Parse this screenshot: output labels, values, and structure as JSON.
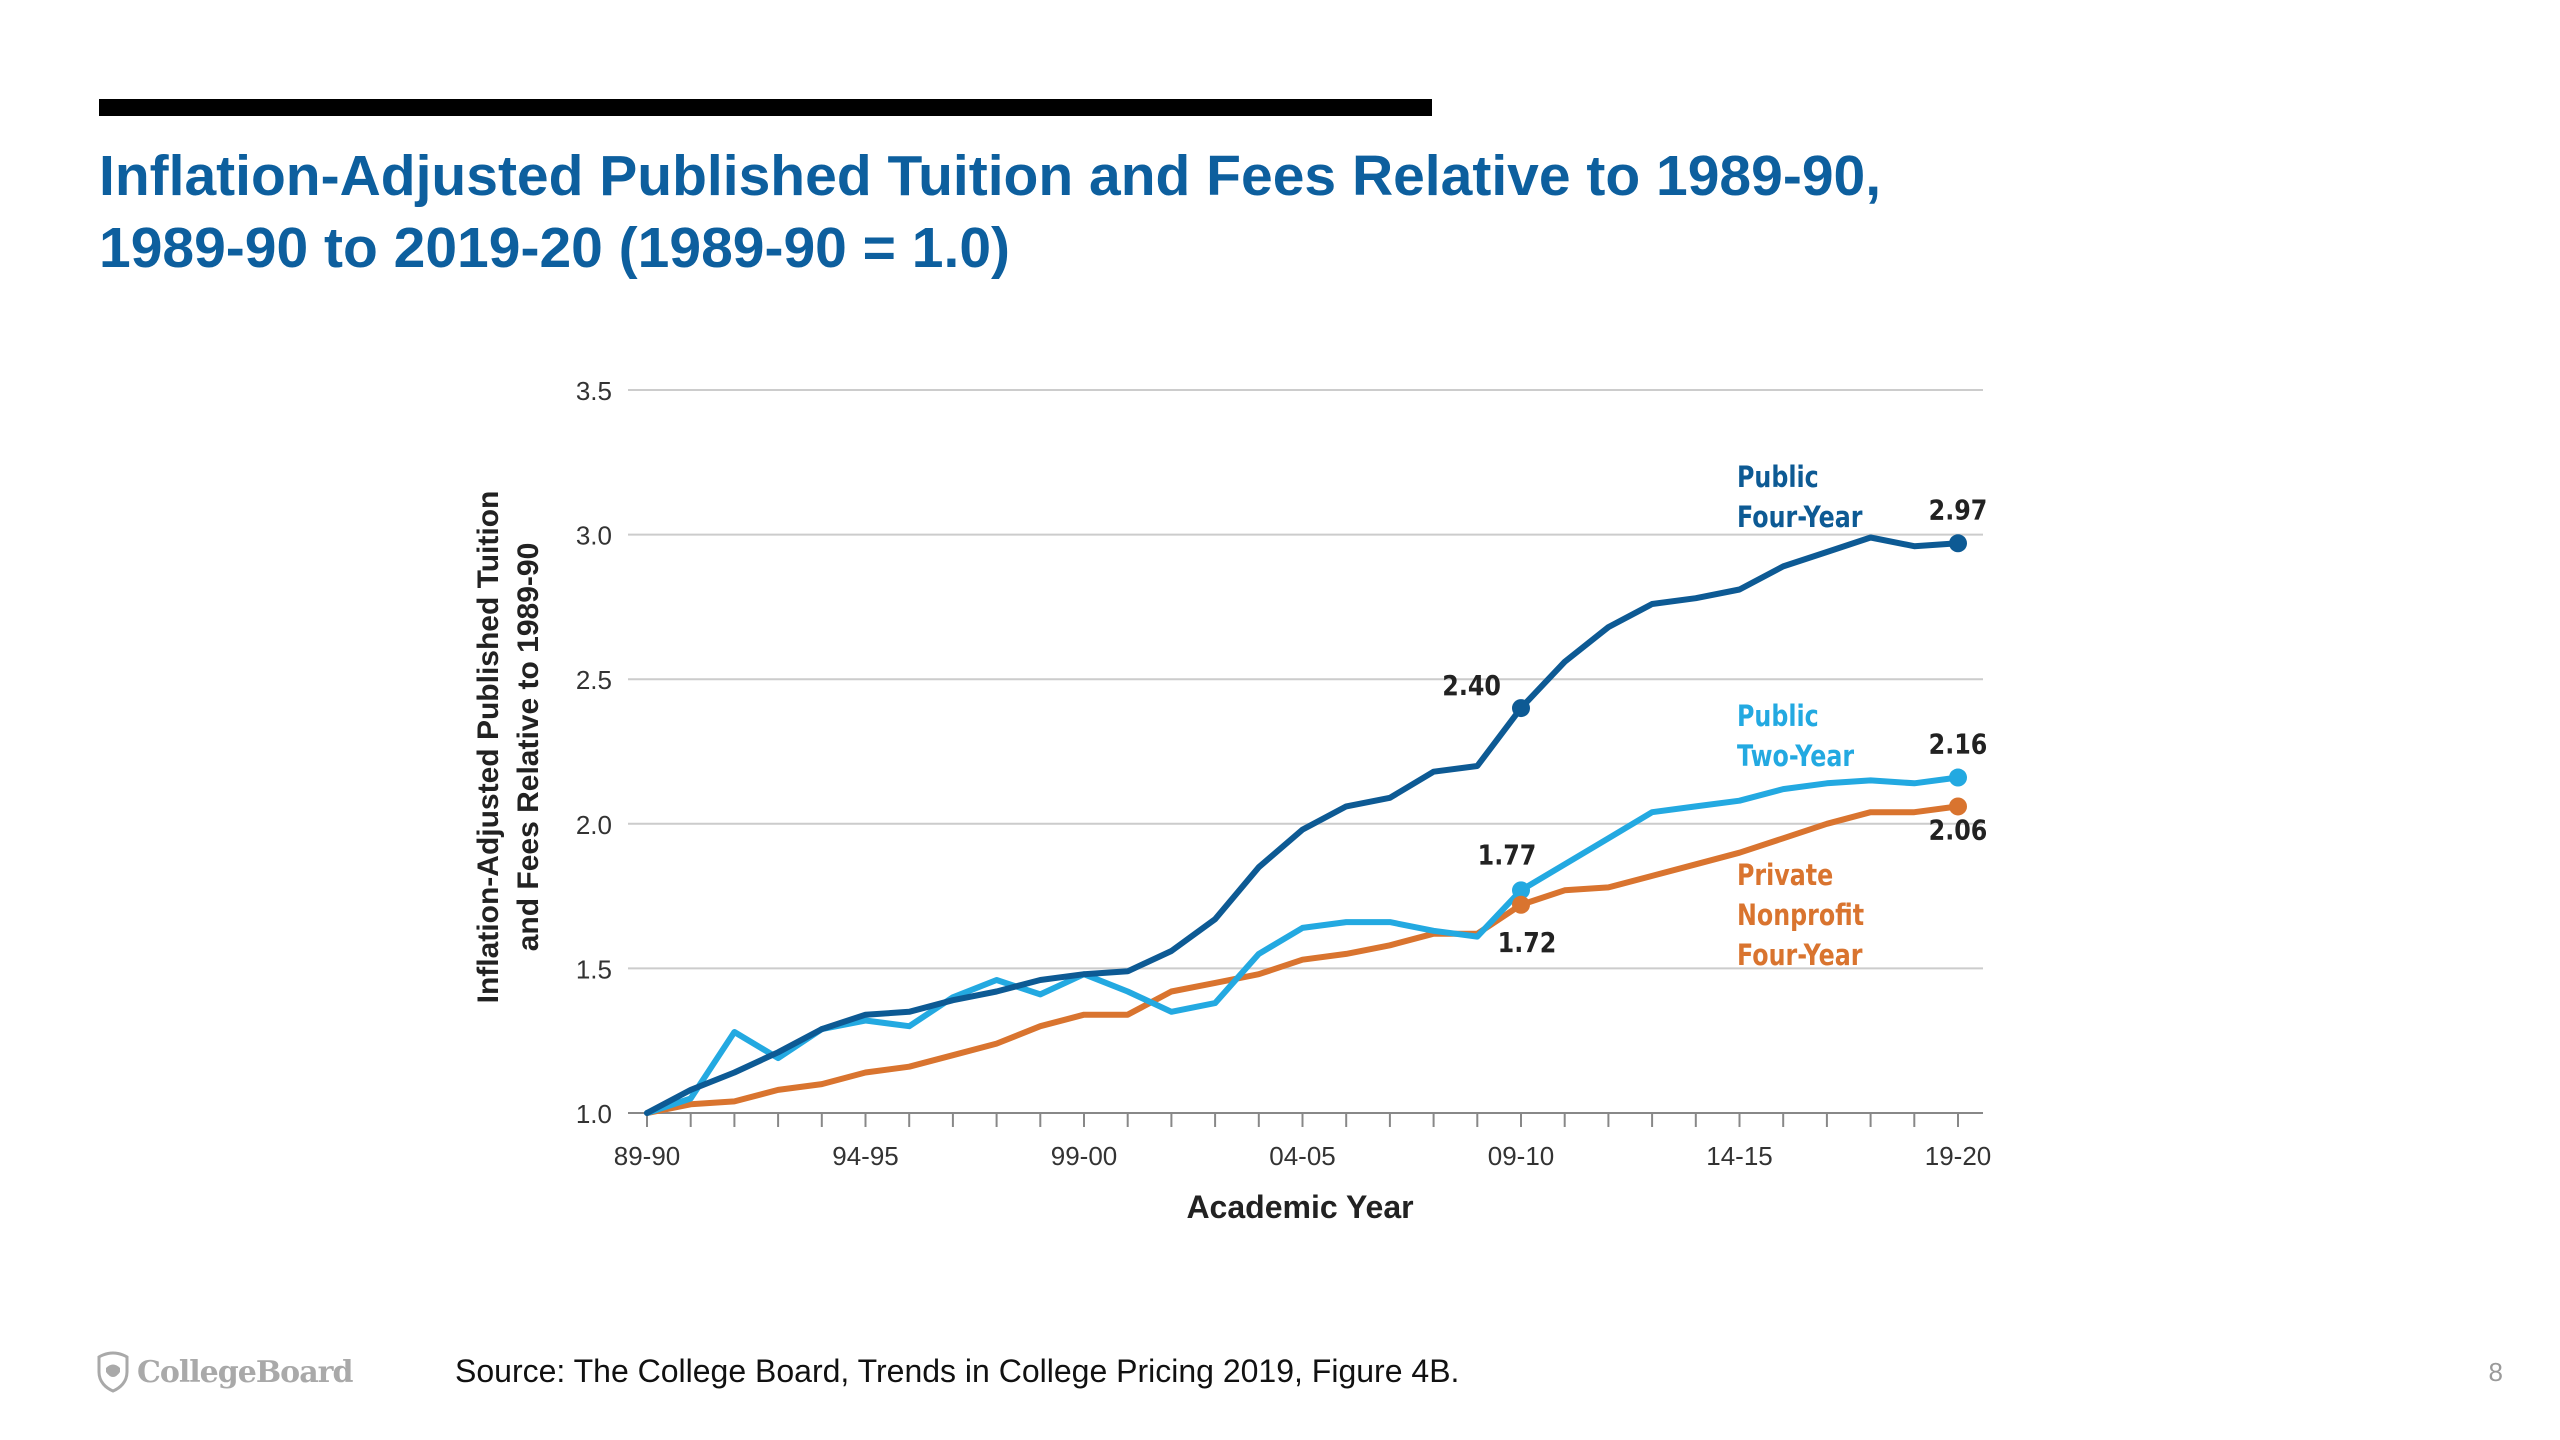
{
  "slide": {
    "title_line1": "Inflation-Adjusted Published Tuition and Fees Relative to 1989-90,",
    "title_line2": "1989-90 to 2019-20 (1989-90 = 1.0)",
    "source": "Source: The College Board, Trends in College Pricing 2019, Figure 4B.",
    "logo_text": "CollegeBoard",
    "page_number": "8"
  },
  "colors": {
    "title": "#0d5f9e",
    "public_four_year": "#0d5a94",
    "public_two_year": "#23a9e1",
    "private_nonprofit": "#d9742f",
    "grid": "#cccccc",
    "axis": "#888888"
  },
  "chart_data": {
    "type": "line",
    "title": "",
    "xlabel": "Academic Year",
    "ylabel_line1": "Inflation-Adjusted Published Tuition",
    "ylabel_line2": "and Fees Relative to 1989-90",
    "ylim": [
      1.0,
      3.5
    ],
    "yticks": [
      1.0,
      1.5,
      2.0,
      2.5,
      3.0,
      3.5
    ],
    "ytick_labels": [
      "1.0",
      "1.5",
      "2.0",
      "2.5",
      "3.0",
      "3.5"
    ],
    "grid": true,
    "categories": [
      "89-90",
      "90-91",
      "91-92",
      "92-93",
      "93-94",
      "94-95",
      "95-96",
      "96-97",
      "97-98",
      "98-99",
      "99-00",
      "00-01",
      "01-02",
      "02-03",
      "03-04",
      "04-05",
      "05-06",
      "06-07",
      "07-08",
      "08-09",
      "09-10",
      "10-11",
      "11-12",
      "12-13",
      "13-14",
      "14-15",
      "15-16",
      "16-17",
      "17-18",
      "18-19",
      "19-20"
    ],
    "xtick_labels": [
      {
        "index": 0,
        "label": "89-90"
      },
      {
        "index": 5,
        "label": "94-95"
      },
      {
        "index": 10,
        "label": "99-00"
      },
      {
        "index": 15,
        "label": "04-05"
      },
      {
        "index": 20,
        "label": "09-10"
      },
      {
        "index": 25,
        "label": "14-15"
      },
      {
        "index": 30,
        "label": "19-20"
      }
    ],
    "series": [
      {
        "key": "public_four_year",
        "name_line1": "Public",
        "name_line2": "Four-Year",
        "name_line3": "",
        "values": [
          1.0,
          1.08,
          1.14,
          1.21,
          1.29,
          1.34,
          1.35,
          1.39,
          1.42,
          1.46,
          1.48,
          1.49,
          1.56,
          1.67,
          1.85,
          1.98,
          2.06,
          2.09,
          2.18,
          2.2,
          2.4,
          2.56,
          2.68,
          2.76,
          2.78,
          2.81,
          2.89,
          2.94,
          2.99,
          2.96,
          2.97
        ]
      },
      {
        "key": "public_two_year",
        "name_line1": "Public",
        "name_line2": "Two-Year",
        "name_line3": "",
        "values": [
          1.0,
          1.05,
          1.28,
          1.19,
          1.29,
          1.32,
          1.3,
          1.4,
          1.46,
          1.41,
          1.48,
          1.42,
          1.35,
          1.38,
          1.55,
          1.64,
          1.66,
          1.66,
          1.63,
          1.61,
          1.77,
          1.86,
          1.95,
          2.04,
          2.06,
          2.08,
          2.12,
          2.14,
          2.15,
          2.14,
          2.16
        ]
      },
      {
        "key": "private_nonprofit",
        "name_line1": "Private",
        "name_line2": "Nonprofit",
        "name_line3": "Four-Year",
        "values": [
          1.0,
          1.03,
          1.04,
          1.08,
          1.1,
          1.14,
          1.16,
          1.2,
          1.24,
          1.3,
          1.34,
          1.34,
          1.42,
          1.45,
          1.48,
          1.53,
          1.55,
          1.58,
          1.62,
          1.62,
          1.72,
          1.77,
          1.78,
          1.82,
          1.86,
          1.9,
          1.95,
          2.0,
          2.04,
          2.04,
          2.06
        ]
      }
    ],
    "annotations": [
      {
        "series": "public_four_year",
        "index": 20,
        "label": "2.40"
      },
      {
        "series": "public_four_year",
        "index": 30,
        "label": "2.97"
      },
      {
        "series": "public_two_year",
        "index": 20,
        "label": "1.77"
      },
      {
        "series": "public_two_year",
        "index": 30,
        "label": "2.16"
      },
      {
        "series": "private_nonprofit",
        "index": 20,
        "label": "1.72"
      },
      {
        "series": "private_nonprofit",
        "index": 30,
        "label": "2.06"
      }
    ]
  }
}
